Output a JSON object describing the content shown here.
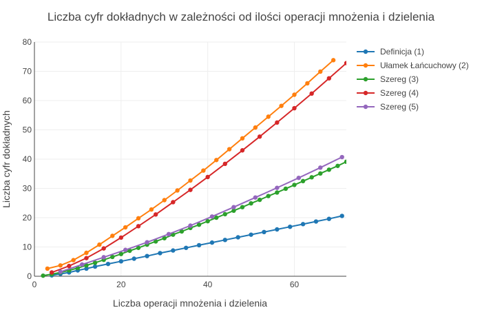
{
  "chart_data": {
    "type": "line",
    "title": "Liczba cyfr dokładnych w zależności od ilości operacji mnożenia i dzielenia",
    "xlabel": "Liczba operacji mnożenia i dzielenia",
    "ylabel": "Liczba cyfr dokładnych",
    "xlim": [
      0,
      72
    ],
    "ylim": [
      0,
      80
    ],
    "xticks": [
      0,
      20,
      40,
      60
    ],
    "yticks": [
      0,
      10,
      20,
      30,
      40,
      50,
      60,
      70,
      80
    ],
    "grid": true,
    "legend_position": "right",
    "series": [
      {
        "name": "Definicja (1)",
        "color": "#1f77b4",
        "x": [
          4,
          6,
          8,
          10,
          12,
          14,
          17,
          20,
          23,
          26,
          29,
          32,
          35,
          38,
          41,
          44,
          47,
          50,
          53,
          56,
          59,
          62,
          65,
          68,
          71
        ],
        "y": [
          0.3,
          0.8,
          1.3,
          2.0,
          2.6,
          3.3,
          4.2,
          5.1,
          6.0,
          6.9,
          7.9,
          8.8,
          9.7,
          10.6,
          11.5,
          12.4,
          13.3,
          14.2,
          15.1,
          16.0,
          16.9,
          17.8,
          18.7,
          19.6,
          20.6
        ]
      },
      {
        "name": "Ułamek Łańcuchowy (2)",
        "color": "#ff7f0e",
        "x": [
          3,
          6,
          9,
          12,
          15,
          18,
          21,
          24,
          27,
          30,
          33,
          36,
          39,
          42,
          45,
          48,
          51,
          54,
          57,
          60,
          63,
          66,
          69
        ],
        "y": [
          2.6,
          3.7,
          5.5,
          8.0,
          10.8,
          13.8,
          16.7,
          19.8,
          22.8,
          26.0,
          29.3,
          32.7,
          36.1,
          39.7,
          43.4,
          47.1,
          50.8,
          54.5,
          58.2,
          62.0,
          65.9,
          69.9,
          73.8
        ]
      },
      {
        "name": "Szereg (3)",
        "color": "#2ca02c",
        "x": [
          2,
          4,
          6,
          8,
          10,
          12,
          14,
          16,
          18,
          20,
          22,
          24,
          26,
          28,
          30,
          32,
          34,
          36,
          38,
          40,
          42,
          44,
          46,
          48,
          50,
          52,
          54,
          56,
          58,
          60,
          62,
          64,
          66,
          68,
          70,
          72
        ],
        "y": [
          0.2,
          0.7,
          1.3,
          2.0,
          2.8,
          3.7,
          4.6,
          5.6,
          6.6,
          7.6,
          8.7,
          9.7,
          10.8,
          11.9,
          13.0,
          14.2,
          15.3,
          16.5,
          17.6,
          18.8,
          20.0,
          21.2,
          22.4,
          23.6,
          24.9,
          26.1,
          27.4,
          28.6,
          29.9,
          31.2,
          32.5,
          33.8,
          35.1,
          36.4,
          37.7,
          39.1
        ]
      },
      {
        "name": "Szereg (4)",
        "color": "#d62728",
        "x": [
          4,
          8,
          12,
          16,
          20,
          24,
          28,
          32,
          36,
          40,
          44,
          48,
          52,
          56,
          60,
          64,
          68,
          72
        ],
        "y": [
          1.3,
          3.5,
          6.2,
          9.5,
          13.2,
          17.1,
          21.1,
          25.3,
          29.5,
          33.9,
          38.4,
          43.0,
          47.7,
          52.5,
          57.4,
          62.4,
          67.6,
          72.8
        ]
      },
      {
        "name": "Szereg (5)",
        "color": "#9467bd",
        "x": [
          6,
          11,
          16,
          21,
          26,
          31,
          36,
          41,
          46,
          51,
          56,
          61,
          66,
          71
        ],
        "y": [
          1.5,
          4.0,
          6.5,
          9.0,
          11.6,
          14.4,
          17.3,
          20.4,
          23.6,
          26.9,
          30.2,
          33.6,
          37.1,
          40.7
        ]
      }
    ]
  }
}
